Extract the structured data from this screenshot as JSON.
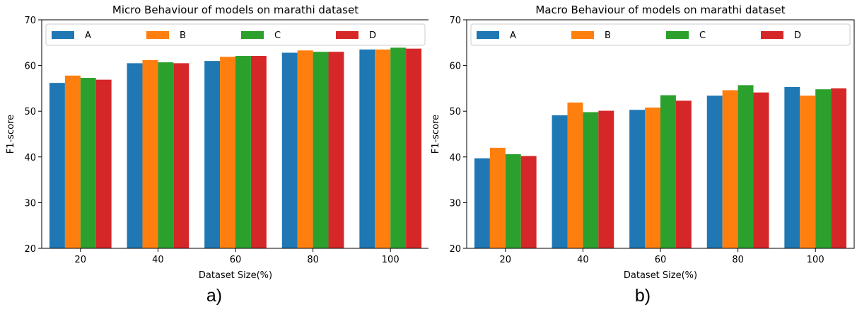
{
  "chart_data": [
    {
      "type": "bar",
      "title": "Micro Behaviour of models on marathi dataset",
      "xlabel": "Dataset Size(%)",
      "ylabel": "F1-score",
      "categories": [
        "20",
        "40",
        "60",
        "80",
        "100"
      ],
      "yticks": [
        "20",
        "30",
        "40",
        "50",
        "60",
        "70"
      ],
      "ylim": [
        20,
        70
      ],
      "legend_position": "top",
      "series": [
        {
          "name": "A",
          "color": "#1f77b4",
          "values": [
            56.2,
            60.5,
            61.0,
            62.8,
            63.5
          ]
        },
        {
          "name": "B",
          "color": "#ff7f0e",
          "values": [
            57.8,
            61.2,
            61.9,
            63.3,
            63.5
          ]
        },
        {
          "name": "C",
          "color": "#2ca02c",
          "values": [
            57.3,
            60.7,
            62.1,
            63.0,
            63.9
          ]
        },
        {
          "name": "D",
          "color": "#d62728",
          "values": [
            56.9,
            60.5,
            62.1,
            63.0,
            63.7
          ]
        }
      ],
      "panel_label": "a)"
    },
    {
      "type": "bar",
      "title": "Macro Behaviour of models on marathi dataset",
      "xlabel": "Dataset Size(%)",
      "ylabel": "F1-score",
      "categories": [
        "20",
        "40",
        "60",
        "80",
        "100"
      ],
      "yticks": [
        "20",
        "30",
        "40",
        "50",
        "60",
        "70"
      ],
      "ylim": [
        20,
        70
      ],
      "legend_position": "top",
      "series": [
        {
          "name": "A",
          "color": "#1f77b4",
          "values": [
            39.7,
            49.1,
            50.3,
            53.4,
            55.3
          ]
        },
        {
          "name": "B",
          "color": "#ff7f0e",
          "values": [
            42.0,
            51.9,
            50.8,
            54.6,
            53.4
          ]
        },
        {
          "name": "C",
          "color": "#2ca02c",
          "values": [
            40.6,
            49.8,
            53.5,
            55.7,
            54.8
          ]
        },
        {
          "name": "D",
          "color": "#d62728",
          "values": [
            40.2,
            50.1,
            52.3,
            54.1,
            55.0
          ]
        }
      ],
      "panel_label": "b)"
    }
  ]
}
